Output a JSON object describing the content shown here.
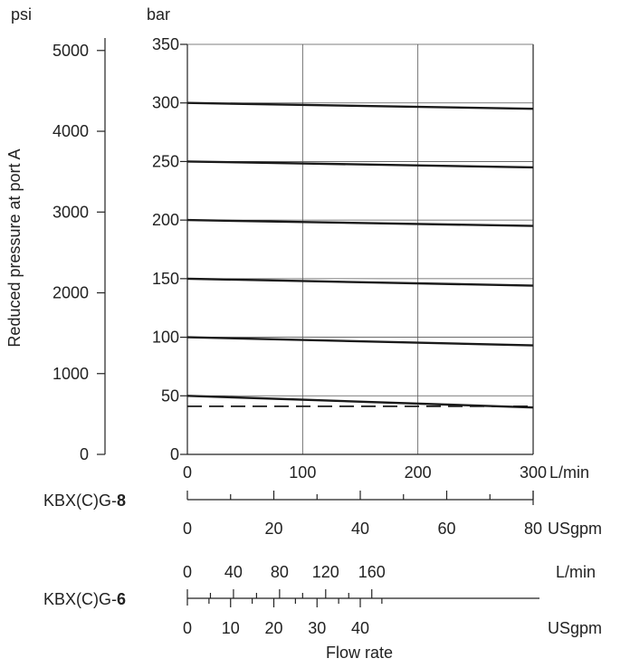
{
  "chart_data": {
    "type": "line",
    "units": {
      "left_outer": "psi",
      "left_inner": "bar"
    },
    "ylabel": "Reduced pressure at port A",
    "xlabel": "Flow rate",
    "y_bar": {
      "range": [
        0,
        350
      ],
      "ticks": [
        "0",
        "50",
        "100",
        "150",
        "200",
        "250",
        "300",
        "350"
      ]
    },
    "y_psi": {
      "range": [
        0,
        5076
      ],
      "ticks": [
        "0",
        "1000",
        "2000",
        "3000",
        "4000",
        "5000"
      ]
    },
    "x_main": {
      "unit": "L/min",
      "range": [
        0,
        300
      ],
      "ticks": [
        "0",
        "100",
        "200",
        "300"
      ]
    },
    "axis_kbx8": {
      "label_prefix": "KBX(C)G-",
      "label_size": "8",
      "lmin_max": 300,
      "usgpm_max": 80,
      "usgpm_unit": "USgpm",
      "usgpm_ticks": [
        "0",
        "20",
        "40",
        "60",
        "80"
      ]
    },
    "axis_kbx6": {
      "label_prefix": "KBX(C)G-",
      "label_size": "6",
      "lmin_unit": "L/min",
      "lmin_ticks": [
        "0",
        "40",
        "80",
        "120",
        "160"
      ],
      "usgpm_unit": "USgpm",
      "usgpm_ticks": [
        "0",
        "10",
        "20",
        "30",
        "40"
      ],
      "lmin_max": 175,
      "usgpm_max": 46
    },
    "grid": true,
    "series": [
      {
        "x": [
          0,
          300
        ],
        "y": [
          300,
          295
        ]
      },
      {
        "x": [
          0,
          300
        ],
        "y": [
          250,
          245
        ]
      },
      {
        "x": [
          0,
          300
        ],
        "y": [
          200,
          195
        ]
      },
      {
        "x": [
          0,
          300
        ],
        "y": [
          150,
          144
        ]
      },
      {
        "x": [
          0,
          300
        ],
        "y": [
          100,
          93
        ]
      },
      {
        "x": [
          0,
          300
        ],
        "y": [
          50,
          40
        ]
      },
      {
        "x": [
          0,
          300
        ],
        "y": [
          41,
          41
        ],
        "style": "dashed"
      }
    ]
  }
}
